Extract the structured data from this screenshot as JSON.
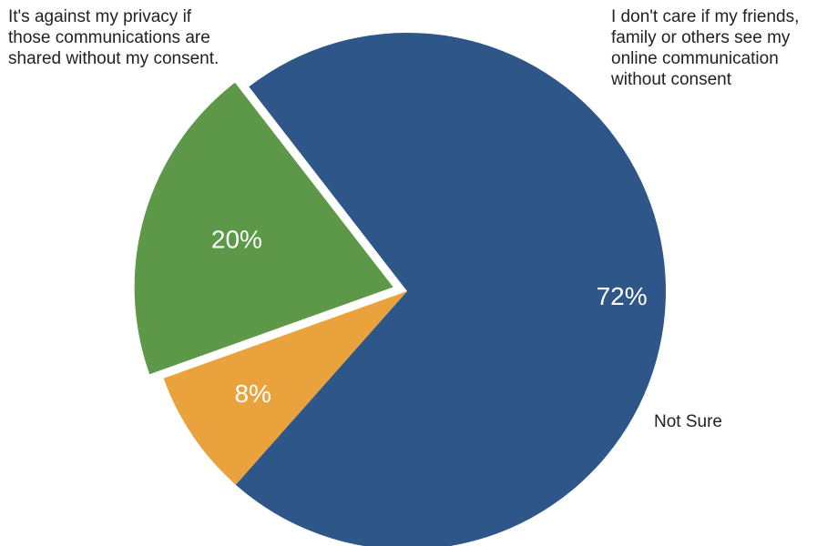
{
  "chart_data": {
    "type": "pie",
    "title": "",
    "slices": [
      {
        "label": "It's against my privacy if\nthose communications are\nshared without my consent.",
        "value": 72,
        "value_label": "72%",
        "color": "#2e5689",
        "exploded": false
      },
      {
        "label": "I don't care if my friends,\nfamily or others see my\nonline communication\nwithout consent",
        "value": 20,
        "value_label": "20%",
        "color": "#5d9849",
        "exploded": true
      },
      {
        "label": "Not Sure",
        "value": 8,
        "value_label": "8%",
        "color": "#e9a23c",
        "exploded": false
      }
    ],
    "legend": "labels-adjacent-to-slices"
  }
}
